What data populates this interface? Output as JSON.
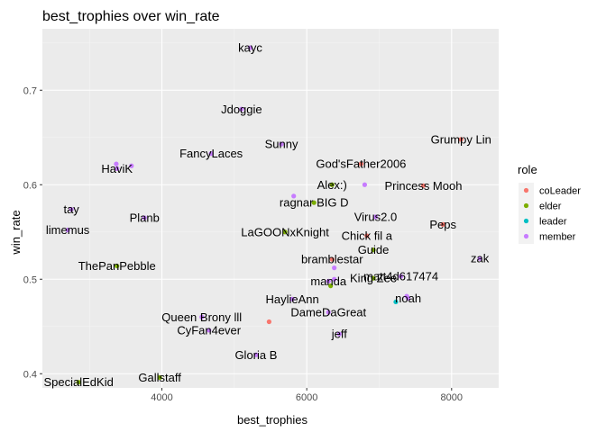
{
  "chart_data": {
    "type": "scatter",
    "title": "best_trophies over win_rate",
    "xlabel": "best_trophies",
    "ylabel": "win_rate",
    "xlim": [
      2350,
      8650
    ],
    "ylim": [
      0.385,
      0.765
    ],
    "x_ticks": [
      4000,
      6000,
      8000
    ],
    "y_ticks": [
      0.4,
      0.5,
      0.6,
      0.7
    ],
    "x_tick_labels": [
      "4000",
      "6000",
      "8000"
    ],
    "y_tick_labels": [
      "0.4",
      "0.5",
      "0.6",
      "0.7"
    ],
    "grid": true,
    "legend_position": "right",
    "legend": {
      "title": "role",
      "entries": [
        {
          "name": "coLeader",
          "color": "#F8766D"
        },
        {
          "name": "elder",
          "color": "#7CAE00"
        },
        {
          "name": "leader",
          "color": "#00BFC4"
        },
        {
          "name": "member",
          "color": "#C77CFF"
        }
      ]
    },
    "points": [
      {
        "label": "kayc",
        "x": 5220,
        "y": 0.745,
        "role": "member"
      },
      {
        "label": "Jdoggie",
        "x": 5100,
        "y": 0.68,
        "role": "member"
      },
      {
        "label": "Grumpy Lin",
        "x": 8130,
        "y": 0.648,
        "role": "coLeader"
      },
      {
        "label": "Sunny",
        "x": 5650,
        "y": 0.643,
        "role": "member"
      },
      {
        "label": "FancyLaces",
        "x": 4680,
        "y": 0.633,
        "role": "member"
      },
      {
        "label": "God'sFather2006",
        "x": 6750,
        "y": 0.622,
        "role": "coLeader"
      },
      {
        "label": "HaviK",
        "x": 3380,
        "y": 0.617,
        "role": "member"
      },
      {
        "label": "Alex:)",
        "x": 6350,
        "y": 0.6,
        "role": "elder"
      },
      {
        "label": "Princess Mooh",
        "x": 7610,
        "y": 0.599,
        "role": "coLeader"
      },
      {
        "label": "ragnar BIG D",
        "x": 6100,
        "y": 0.581,
        "role": "elder"
      },
      {
        "label": "tay",
        "x": 2750,
        "y": 0.574,
        "role": "member"
      },
      {
        "label": "Planb",
        "x": 3760,
        "y": 0.565,
        "role": "member"
      },
      {
        "label": "Virus2.0",
        "x": 6950,
        "y": 0.566,
        "role": "member"
      },
      {
        "label": "Peps",
        "x": 7880,
        "y": 0.558,
        "role": "coLeader"
      },
      {
        "label": "limemus",
        "x": 2700,
        "y": 0.552,
        "role": "member"
      },
      {
        "label": "LaGOONxKnight",
        "x": 5700,
        "y": 0.55,
        "role": "elder"
      },
      {
        "label": "Chick fil a",
        "x": 6830,
        "y": 0.546,
        "role": "coLeader"
      },
      {
        "label": "Guide",
        "x": 6920,
        "y": 0.531,
        "role": "elder"
      },
      {
        "label": "zak",
        "x": 8390,
        "y": 0.522,
        "role": "member"
      },
      {
        "label": "bramblestar",
        "x": 6350,
        "y": 0.521,
        "role": "coLeader"
      },
      {
        "label": "ThePanPebble",
        "x": 3380,
        "y": 0.514,
        "role": "elder"
      },
      {
        "label": "manda",
        "x": 6300,
        "y": 0.498,
        "role": "member"
      },
      {
        "label": "King Zee",
        "x": 6920,
        "y": 0.501,
        "role": "elder"
      },
      {
        "label": "matt4d617474",
        "x": 7300,
        "y": 0.503,
        "role": "member"
      },
      {
        "label": "HaylieAnn",
        "x": 5800,
        "y": 0.479,
        "role": "member"
      },
      {
        "label": "noah",
        "x": 7400,
        "y": 0.48,
        "role": "member"
      },
      {
        "label": "Queen Brony lll",
        "x": 4550,
        "y": 0.46,
        "role": "member"
      },
      {
        "label": "DameDaGreat",
        "x": 6300,
        "y": 0.465,
        "role": "member"
      },
      {
        "label": "CyFan4ever",
        "x": 4650,
        "y": 0.446,
        "role": "member"
      },
      {
        "label": "jeff",
        "x": 6450,
        "y": 0.442,
        "role": "member"
      },
      {
        "label": "Gloria B",
        "x": 5300,
        "y": 0.42,
        "role": "member"
      },
      {
        "label": "Gallstaff",
        "x": 3970,
        "y": 0.396,
        "role": "elder"
      },
      {
        "label": "SpecialEdKid",
        "x": 2850,
        "y": 0.391,
        "role": "elder"
      }
    ],
    "extra_points": [
      {
        "x": 6330,
        "y": 0.493,
        "role": "elder"
      },
      {
        "x": 6380,
        "y": 0.512,
        "role": "member"
      },
      {
        "x": 6380,
        "y": 0.5,
        "role": "member"
      },
      {
        "x": 7230,
        "y": 0.476,
        "role": "leader"
      },
      {
        "x": 7380,
        "y": 0.482,
        "role": "member"
      },
      {
        "x": 5480,
        "y": 0.455,
        "role": "coLeader"
      },
      {
        "x": 5820,
        "y": 0.588,
        "role": "member"
      },
      {
        "x": 3370,
        "y": 0.622,
        "role": "member"
      },
      {
        "x": 3580,
        "y": 0.62,
        "role": "member"
      },
      {
        "x": 6800,
        "y": 0.6,
        "role": "member"
      }
    ]
  }
}
